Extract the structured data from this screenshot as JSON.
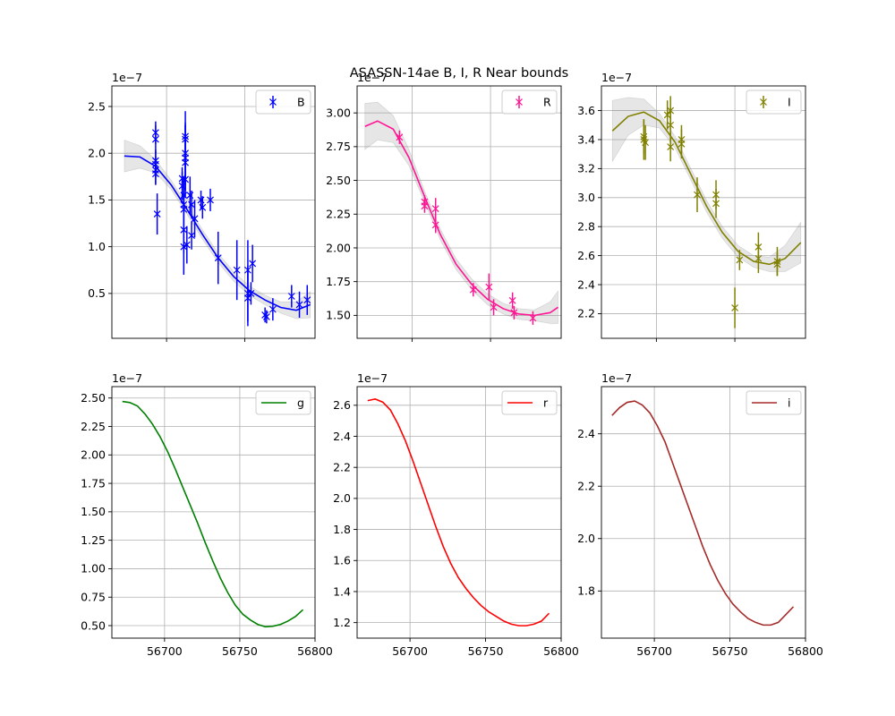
{
  "title": "ASASSN-14ae  B, I, R Near bounds",
  "chart_data": [
    {
      "type": "scatter",
      "series": [
        {
          "name": "B",
          "color": "#0000ff"
        }
      ],
      "xlim": [
        56665,
        56795
      ],
      "ylim": [
        0.02,
        2.72
      ],
      "yticks": [
        0.5,
        1.0,
        1.5,
        2.0,
        2.5
      ],
      "ytick_labels": [
        "0.5",
        "1.0",
        "1.5",
        "2.0",
        "2.5"
      ],
      "xticks": [
        56700,
        56750,
        56800
      ],
      "xtick_labels": [],
      "offset_text": "1e−7",
      "legend": "top-right",
      "grid": true,
      "band": true,
      "curve": [
        [
          56673,
          1.97
        ],
        [
          56683,
          1.96
        ],
        [
          56693,
          1.86
        ],
        [
          56703,
          1.66
        ],
        [
          56713,
          1.4
        ],
        [
          56723,
          1.13
        ],
        [
          56733,
          0.88
        ],
        [
          56743,
          0.68
        ],
        [
          56753,
          0.53
        ],
        [
          56763,
          0.43
        ],
        [
          56773,
          0.35
        ],
        [
          56783,
          0.32
        ],
        [
          56792,
          0.38
        ]
      ],
      "band_width": [
        0.17,
        0.12,
        0.07,
        0.05,
        0.05,
        0.05,
        0.05,
        0.05,
        0.05,
        0.05,
        0.06,
        0.09,
        0.14
      ],
      "points": [
        [
          56693,
          2.22,
          0.12
        ],
        [
          56693,
          2.15,
          0.15
        ],
        [
          56693,
          1.92,
          0.12
        ],
        [
          56693,
          1.88,
          0.14
        ],
        [
          56693,
          1.82,
          0.15
        ],
        [
          56693,
          1.78,
          0.12
        ],
        [
          56694,
          1.35,
          0.22
        ],
        [
          56710,
          1.73,
          0.12
        ],
        [
          56710,
          1.65,
          0.15
        ],
        [
          56711,
          1.55,
          0.2
        ],
        [
          56711,
          1.45,
          0.15
        ],
        [
          56711,
          1.4,
          0.2
        ],
        [
          56711,
          1.18,
          0.25
        ],
        [
          56711,
          1.0,
          0.3
        ],
        [
          56712,
          2.18,
          0.15
        ],
        [
          56712,
          2.15,
          0.3
        ],
        [
          56712,
          2.0,
          0.3
        ],
        [
          56712,
          1.95,
          0.35
        ],
        [
          56712,
          1.9,
          0.3
        ],
        [
          56712,
          1.72,
          0.2
        ],
        [
          56713,
          1.02,
          0.2
        ],
        [
          56715,
          1.55,
          0.2
        ],
        [
          56716,
          1.45,
          0.15
        ],
        [
          56716,
          1.12,
          0.15
        ],
        [
          56718,
          1.3,
          0.2
        ],
        [
          56722,
          1.5,
          0.1
        ],
        [
          56723,
          1.42,
          0.12
        ],
        [
          56728,
          1.5,
          0.12
        ],
        [
          56733,
          0.88,
          0.28
        ],
        [
          56745,
          0.75,
          0.32
        ],
        [
          56752,
          0.75,
          0.32
        ],
        [
          56752,
          0.5,
          0.3
        ],
        [
          56752,
          0.45,
          0.3
        ],
        [
          56754,
          0.5,
          0.12
        ],
        [
          56755,
          0.82,
          0.2
        ],
        [
          56763,
          0.27,
          0.08
        ],
        [
          56764,
          0.25,
          0.07
        ],
        [
          56768,
          0.33,
          0.12
        ],
        [
          56780,
          0.47,
          0.12
        ],
        [
          56785,
          0.38,
          0.14
        ],
        [
          56790,
          0.43,
          0.16
        ]
      ]
    },
    {
      "type": "scatter",
      "series": [
        {
          "name": "R",
          "color": "#ff1493"
        }
      ],
      "xlim": [
        56665,
        56795
      ],
      "ylim": [
        1.33,
        3.2
      ],
      "yticks": [
        1.5,
        1.75,
        2.0,
        2.25,
        2.5,
        2.75,
        3.0
      ],
      "ytick_labels": [
        "1.50",
        "1.75",
        "2.00",
        "2.25",
        "2.50",
        "2.75",
        "3.00"
      ],
      "xticks": [
        56700,
        56750,
        56800
      ],
      "xtick_labels": [],
      "offset_text": "1e−7",
      "legend": "top-right",
      "grid": true,
      "band": true,
      "curve": [
        [
          56670,
          2.9
        ],
        [
          56678,
          2.94
        ],
        [
          56688,
          2.88
        ],
        [
          56698,
          2.67
        ],
        [
          56708,
          2.38
        ],
        [
          56718,
          2.1
        ],
        [
          56728,
          1.88
        ],
        [
          56738,
          1.73
        ],
        [
          56748,
          1.62
        ],
        [
          56758,
          1.55
        ],
        [
          56768,
          1.51
        ],
        [
          56778,
          1.5
        ],
        [
          56788,
          1.52
        ],
        [
          56793,
          1.56
        ]
      ],
      "band_width": [
        0.17,
        0.14,
        0.1,
        0.06,
        0.04,
        0.04,
        0.04,
        0.04,
        0.04,
        0.04,
        0.04,
        0.04,
        0.08,
        0.12
      ],
      "points": [
        [
          56692,
          2.82,
          0.05
        ],
        [
          56708,
          2.34,
          0.05
        ],
        [
          56708,
          2.31,
          0.05
        ],
        [
          56715,
          2.29,
          0.08
        ],
        [
          56715,
          2.17,
          0.06
        ],
        [
          56739,
          1.69,
          0.05
        ],
        [
          56749,
          1.71,
          0.1
        ],
        [
          56752,
          1.56,
          0.06
        ],
        [
          56764,
          1.61,
          0.06
        ],
        [
          56765,
          1.52,
          0.05
        ],
        [
          56777,
          1.48,
          0.05
        ]
      ]
    },
    {
      "type": "scatter",
      "series": [
        {
          "name": "I",
          "color": "#808000"
        }
      ],
      "xlim": [
        56665,
        56795
      ],
      "ylim": [
        2.03,
        3.77
      ],
      "yticks": [
        2.2,
        2.4,
        2.6,
        2.8,
        3.0,
        3.2,
        3.4,
        3.6
      ],
      "ytick_labels": [
        "2.2",
        "2.4",
        "2.6",
        "2.8",
        "3.0",
        "3.2",
        "3.4",
        "3.6"
      ],
      "xticks": [
        56700,
        56750,
        56800
      ],
      "xtick_labels": [],
      "offset_text": "1e−7",
      "legend": "top-right",
      "grid": true,
      "band": true,
      "curve": [
        [
          56672,
          3.46
        ],
        [
          56682,
          3.56
        ],
        [
          56692,
          3.59
        ],
        [
          56702,
          3.53
        ],
        [
          56712,
          3.38
        ],
        [
          56722,
          3.16
        ],
        [
          56732,
          2.94
        ],
        [
          56742,
          2.76
        ],
        [
          56752,
          2.63
        ],
        [
          56762,
          2.56
        ],
        [
          56772,
          2.54
        ],
        [
          56782,
          2.58
        ],
        [
          56792,
          2.69
        ]
      ],
      "band_width": [
        0.21,
        0.13,
        0.09,
        0.05,
        0.04,
        0.04,
        0.04,
        0.04,
        0.04,
        0.04,
        0.05,
        0.09,
        0.14
      ],
      "points": [
        [
          56692,
          3.42,
          0.12
        ],
        [
          56692,
          3.4,
          0.14
        ],
        [
          56693,
          3.38,
          0.12
        ],
        [
          56707,
          3.57,
          0.1
        ],
        [
          56709,
          3.6,
          0.1
        ],
        [
          56709,
          3.5,
          0.12
        ],
        [
          56709,
          3.35,
          0.1
        ],
        [
          56716,
          3.4,
          0.1
        ],
        [
          56716,
          3.37,
          0.1
        ],
        [
          56726,
          3.02,
          0.12
        ],
        [
          56738,
          3.02,
          0.1
        ],
        [
          56738,
          2.96,
          0.1
        ],
        [
          56750,
          2.24,
          0.14
        ],
        [
          56753,
          2.57,
          0.07
        ],
        [
          56765,
          2.66,
          0.1
        ],
        [
          56765,
          2.58,
          0.1
        ],
        [
          56777,
          2.56,
          0.1
        ],
        [
          56777,
          2.54,
          0.08
        ]
      ]
    },
    {
      "type": "line",
      "series": [
        {
          "name": "g",
          "color": "#008000"
        }
      ],
      "xlim": [
        56665,
        56800
      ],
      "ylim": [
        0.39,
        2.6
      ],
      "yticks": [
        0.5,
        0.75,
        1.0,
        1.25,
        1.5,
        1.75,
        2.0,
        2.25,
        2.5
      ],
      "ytick_labels": [
        "0.50",
        "0.75",
        "1.00",
        "1.25",
        "1.50",
        "1.75",
        "2.00",
        "2.25",
        "2.50"
      ],
      "xticks": [
        56700,
        56750,
        56800
      ],
      "xtick_labels": [
        "56700",
        "56750",
        "56800"
      ],
      "offset_text": "1e−7",
      "legend": "top-right",
      "grid": true,
      "band": false,
      "curve": [
        [
          56672,
          2.47
        ],
        [
          56677,
          2.46
        ],
        [
          56682,
          2.43
        ],
        [
          56687,
          2.36
        ],
        [
          56692,
          2.27
        ],
        [
          56697,
          2.16
        ],
        [
          56702,
          2.03
        ],
        [
          56707,
          1.88
        ],
        [
          56712,
          1.72
        ],
        [
          56717,
          1.56
        ],
        [
          56722,
          1.4
        ],
        [
          56727,
          1.23
        ],
        [
          56732,
          1.07
        ],
        [
          56737,
          0.92
        ],
        [
          56742,
          0.79
        ],
        [
          56747,
          0.68
        ],
        [
          56752,
          0.6
        ],
        [
          56757,
          0.55
        ],
        [
          56762,
          0.51
        ],
        [
          56767,
          0.49
        ],
        [
          56772,
          0.495
        ],
        [
          56777,
          0.51
        ],
        [
          56782,
          0.54
        ],
        [
          56787,
          0.58
        ],
        [
          56792,
          0.64
        ]
      ],
      "points": []
    },
    {
      "type": "line",
      "series": [
        {
          "name": "r",
          "color": "#ff0000"
        }
      ],
      "xlim": [
        56665,
        56800
      ],
      "ylim": [
        1.1,
        2.72
      ],
      "yticks": [
        1.2,
        1.4,
        1.6,
        1.8,
        2.0,
        2.2,
        2.4,
        2.6
      ],
      "ytick_labels": [
        "1.2",
        "1.4",
        "1.6",
        "1.8",
        "2.0",
        "2.2",
        "2.4",
        "2.6"
      ],
      "xticks": [
        56700,
        56750,
        56800
      ],
      "xtick_labels": [
        "56700",
        "56750",
        "56800"
      ],
      "offset_text": "1e−7",
      "legend": "top-right",
      "grid": true,
      "band": false,
      "curve": [
        [
          56672,
          2.63
        ],
        [
          56677,
          2.64
        ],
        [
          56682,
          2.62
        ],
        [
          56687,
          2.57
        ],
        [
          56692,
          2.48
        ],
        [
          56697,
          2.37
        ],
        [
          56702,
          2.24
        ],
        [
          56707,
          2.1
        ],
        [
          56712,
          1.96
        ],
        [
          56717,
          1.82
        ],
        [
          56722,
          1.69
        ],
        [
          56727,
          1.58
        ],
        [
          56732,
          1.49
        ],
        [
          56737,
          1.42
        ],
        [
          56742,
          1.36
        ],
        [
          56747,
          1.31
        ],
        [
          56752,
          1.27
        ],
        [
          56757,
          1.24
        ],
        [
          56762,
          1.21
        ],
        [
          56767,
          1.19
        ],
        [
          56772,
          1.18
        ],
        [
          56777,
          1.18
        ],
        [
          56782,
          1.19
        ],
        [
          56787,
          1.21
        ],
        [
          56792,
          1.26
        ]
      ],
      "points": []
    },
    {
      "type": "line",
      "series": [
        {
          "name": "i",
          "color": "#a52a2a"
        }
      ],
      "xlim": [
        56665,
        56800
      ],
      "ylim": [
        1.62,
        2.58
      ],
      "yticks": [
        1.8,
        2.0,
        2.2,
        2.4
      ],
      "ytick_labels": [
        "1.8",
        "2.0",
        "2.2",
        "2.4"
      ],
      "xticks": [
        56700,
        56750,
        56800
      ],
      "xtick_labels": [
        "56700",
        "56750",
        "56800"
      ],
      "offset_text": "1e−7",
      "legend": "top-right",
      "grid": true,
      "band": false,
      "curve": [
        [
          56672,
          2.47
        ],
        [
          56677,
          2.5
        ],
        [
          56682,
          2.52
        ],
        [
          56687,
          2.525
        ],
        [
          56692,
          2.51
        ],
        [
          56697,
          2.48
        ],
        [
          56702,
          2.43
        ],
        [
          56707,
          2.37
        ],
        [
          56712,
          2.29
        ],
        [
          56717,
          2.21
        ],
        [
          56722,
          2.13
        ],
        [
          56727,
          2.05
        ],
        [
          56732,
          1.97
        ],
        [
          56737,
          1.9
        ],
        [
          56742,
          1.84
        ],
        [
          56747,
          1.79
        ],
        [
          56752,
          1.75
        ],
        [
          56757,
          1.72
        ],
        [
          56762,
          1.695
        ],
        [
          56767,
          1.68
        ],
        [
          56772,
          1.67
        ],
        [
          56777,
          1.67
        ],
        [
          56782,
          1.68
        ],
        [
          56787,
          1.71
        ],
        [
          56792,
          1.74
        ]
      ],
      "points": []
    }
  ]
}
